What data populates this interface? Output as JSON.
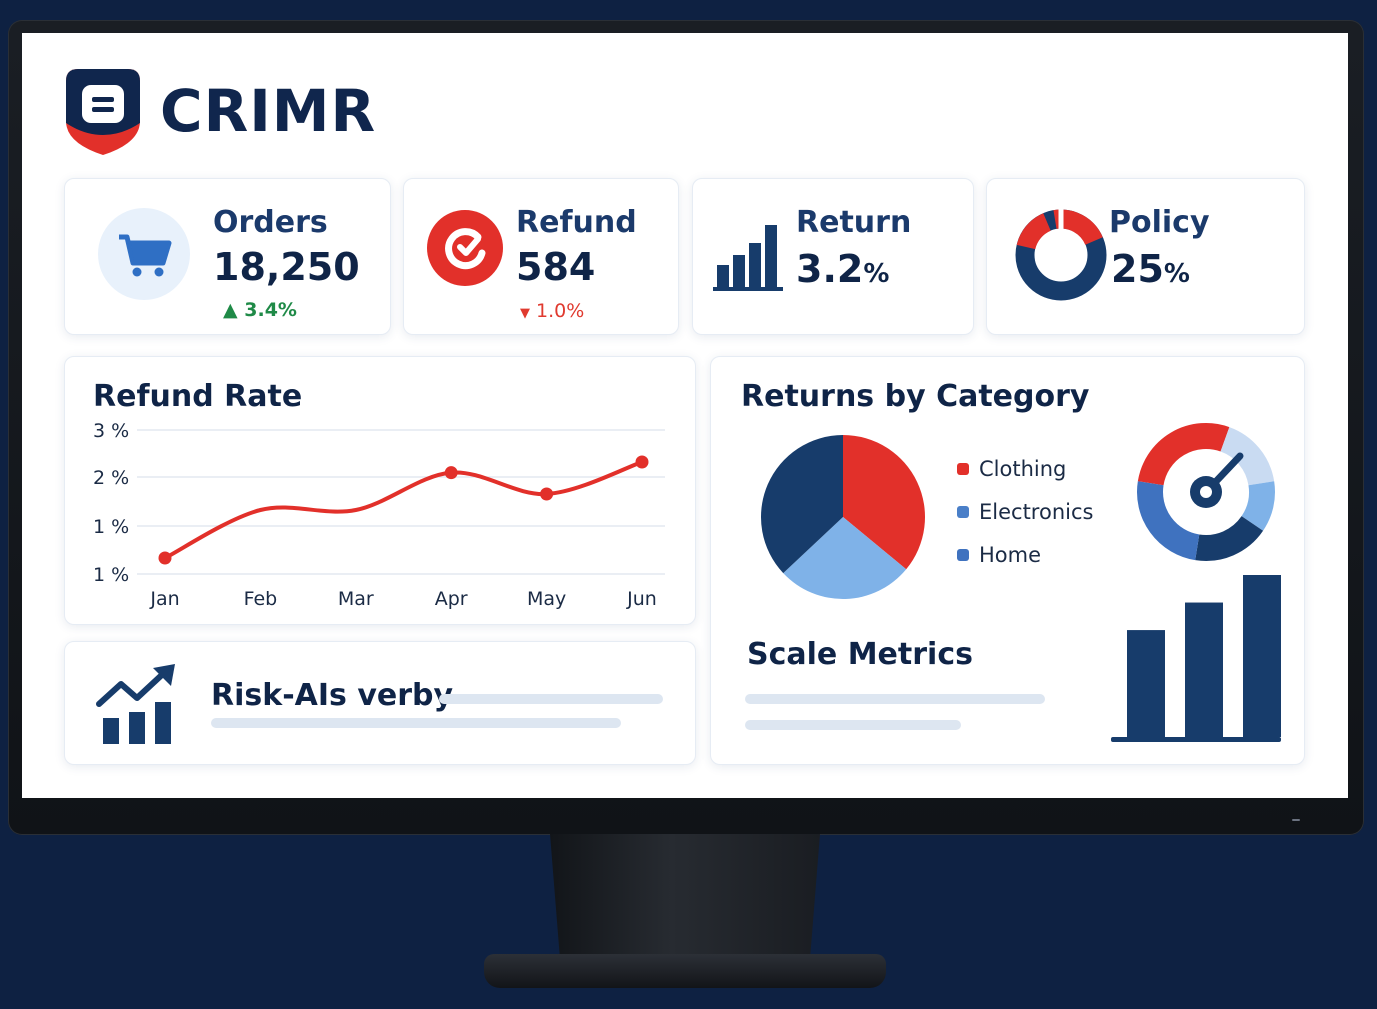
{
  "brand": {
    "name": "CRIMR"
  },
  "colors": {
    "navy": "#173c6b",
    "red": "#e2302a",
    "blue": "#4a7fc8",
    "lightblue": "#7fb2e8",
    "green": "#1f8a47"
  },
  "kpis": {
    "orders": {
      "title": "Orders",
      "value": "18,250",
      "delta": "3.4%",
      "trend": "up",
      "icon": "shopping-cart-icon"
    },
    "refund": {
      "title": "Refund",
      "value": "584",
      "delta": "1.0%",
      "trend": "down",
      "icon": "refund-icon"
    },
    "return": {
      "title": "Return",
      "value": "3.2",
      "unit": "%",
      "icon": "bar-chart-icon"
    },
    "policy": {
      "title": "Policy",
      "value": "25",
      "unit": "%",
      "icon": "donut-icon"
    }
  },
  "refund_rate": {
    "title": "Refund Rate",
    "y_ticks": [
      "3 %",
      "2 %",
      "1 %",
      "1 %"
    ],
    "months": [
      "Jan",
      "Feb",
      "Mar",
      "Apr",
      "May",
      "Jun"
    ]
  },
  "returns_by_category": {
    "title": "Returns by Category",
    "legend": [
      {
        "label": "Clothing",
        "color": "#e2302a"
      },
      {
        "label": "Electronics",
        "color": "#4a7fc8"
      },
      {
        "label": "Home",
        "color": "#3f72bf"
      }
    ]
  },
  "risk": {
    "title": "Risk-AIs verby",
    "icon": "trend-up-chart-icon"
  },
  "scale": {
    "title": "Scale Metrics"
  },
  "chart_data": [
    {
      "type": "line",
      "title": "Refund Rate",
      "x": [
        "Jan",
        "Feb",
        "Mar",
        "Apr",
        "May",
        "Jun"
      ],
      "series": [
        {
          "values": [
            0.6,
            1.5,
            1.5,
            2.2,
            1.8,
            2.4
          ]
        }
      ],
      "markers_at": [
        "Jan",
        "Apr",
        "May",
        "Jun"
      ],
      "ytick_labels": [
        "3 %",
        "2 %",
        "1 %",
        "1 %"
      ],
      "grid": true
    },
    {
      "type": "pie",
      "title": "Returns by Category",
      "categories": [
        "Clothing",
        "Electronics",
        "Home"
      ],
      "values": [
        36,
        27,
        37
      ],
      "colors": [
        "#e2302a",
        "#7fb2e8",
        "#173c6b"
      ]
    },
    {
      "type": "pie",
      "variant": "donut-gauge",
      "values": [
        28,
        17,
        12,
        18,
        25
      ],
      "colors": [
        "#e2302a",
        "#c9dbf2",
        "#7fb2e8",
        "#173c6b",
        "#3f72bf"
      ]
    },
    {
      "type": "bar",
      "title": "Scale Metrics",
      "values": [
        0.66,
        0.83,
        1.0
      ]
    }
  ]
}
